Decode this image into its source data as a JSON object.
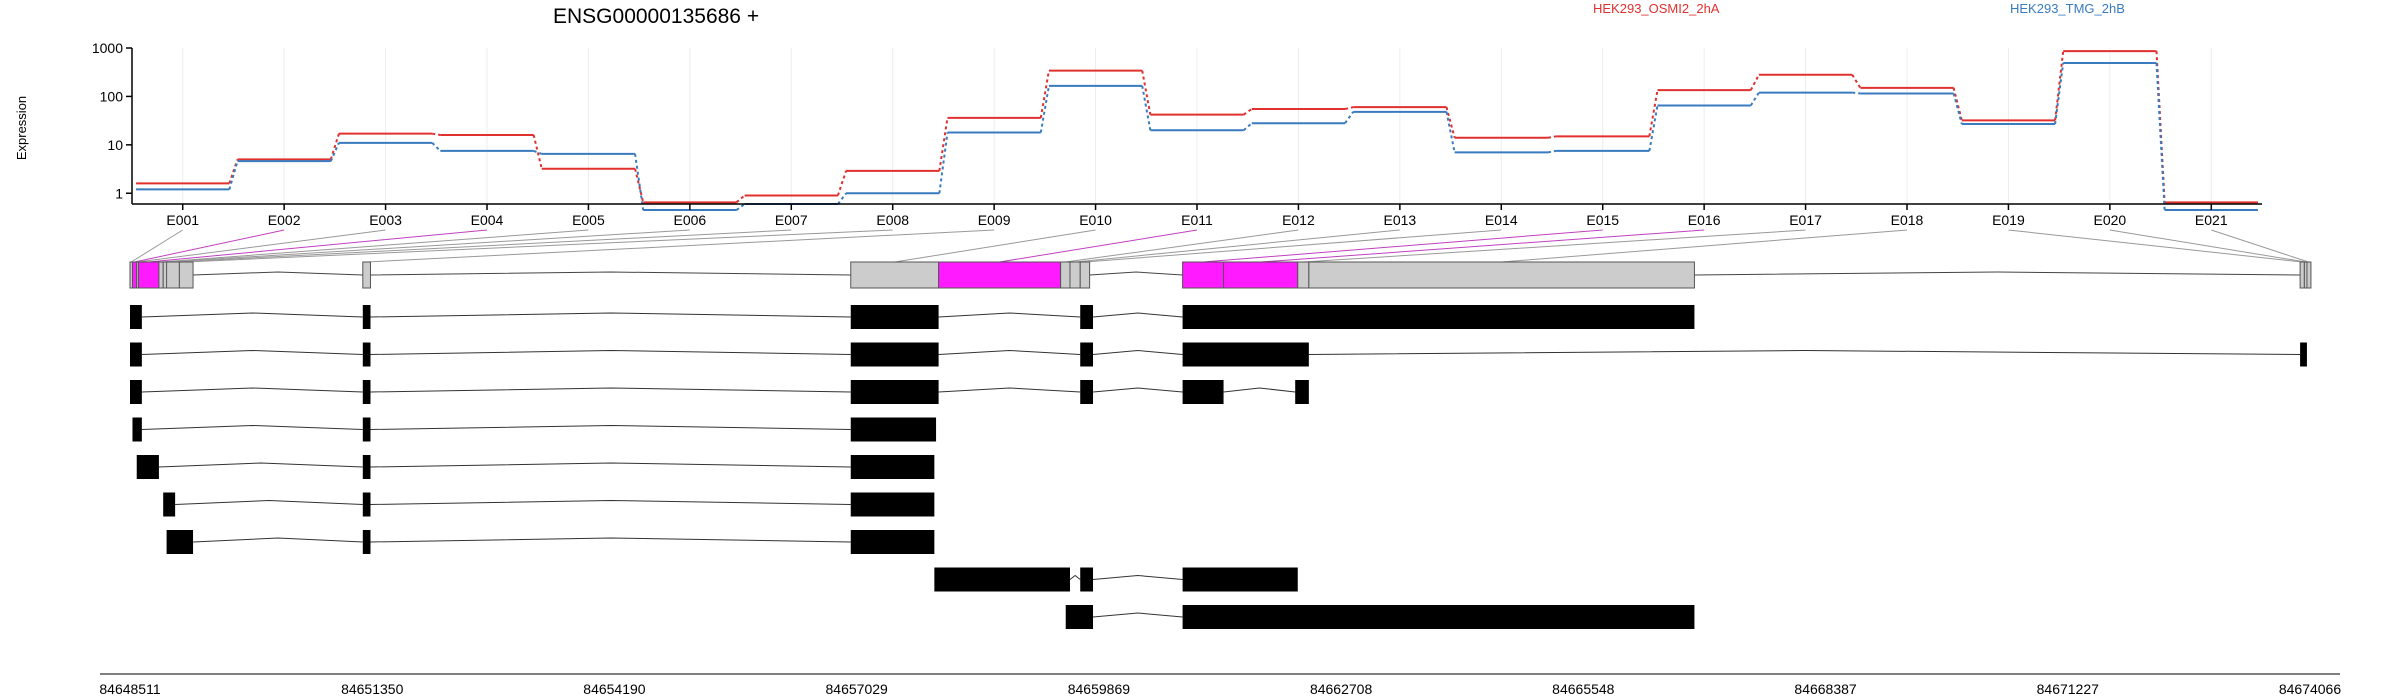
{
  "title": "ENSG00000135686 +",
  "ylabel": "Expression",
  "colors": {
    "series_a": "#e0312f",
    "series_b": "#3a7bbf",
    "exon_highlight": "#ff1aff",
    "exon_grey": "#cccccc",
    "grid": "#ececf4"
  },
  "chart_data": {
    "type": "line",
    "title": "ENSG00000135686 +",
    "ylabel": "Expression",
    "yscale": "log",
    "ylim": [
      0.6,
      1000
    ],
    "yticks": [
      "1",
      "10",
      "100",
      "1000"
    ],
    "legend_position": "top",
    "categories": [
      "E001",
      "E002",
      "E003",
      "E004",
      "E005",
      "E006",
      "E007",
      "E008",
      "E009",
      "E010",
      "E011",
      "E012",
      "E013",
      "E014",
      "E015",
      "E016",
      "E017",
      "E018",
      "E019",
      "E020",
      "E021"
    ],
    "series": [
      {
        "name": "HEK293_OSMI2_2hA",
        "color": "#e0312f",
        "values": [
          1.6,
          5.0,
          17,
          16,
          3.2,
          0.65,
          0.9,
          2.9,
          36,
          340,
          42,
          55,
          60,
          14,
          15,
          135,
          280,
          150,
          32,
          860,
          0.65
        ]
      },
      {
        "name": "HEK293_TMG_2hB",
        "color": "#3a7bbf",
        "values": [
          1.2,
          4.6,
          11,
          7.5,
          6.5,
          0.45,
          0.6,
          1.0,
          18,
          165,
          20,
          28,
          48,
          7.0,
          7.5,
          65,
          120,
          115,
          27,
          490,
          0.45
        ]
      }
    ],
    "genomic_axis_labels": [
      "84648511",
      "84651350",
      "84654190",
      "84657029",
      "84659869",
      "84662708",
      "84665548",
      "84668387",
      "84671227",
      "84674066"
    ]
  },
  "gene_model": {
    "coord_range": [
      84648511,
      84674066
    ],
    "exon_bins": [
      [
        84648511,
        84648540
      ],
      [
        84648540,
        84648590
      ],
      [
        84648590,
        84648610
      ],
      [
        84648610,
        84648850
      ],
      [
        84648850,
        84648900
      ],
      [
        84648900,
        84648940
      ],
      [
        84648940,
        84649090
      ],
      [
        84649090,
        84649250
      ],
      [
        84651240,
        84651330
      ],
      [
        84656960,
        84657990
      ],
      [
        84657990,
        84659420
      ],
      [
        84659420,
        84659530
      ],
      [
        84659530,
        84659650
      ],
      [
        84659650,
        84659760
      ],
      [
        84660850,
        84661330
      ],
      [
        84661330,
        84662200
      ],
      [
        84662200,
        84662330
      ],
      [
        84662330,
        84666850
      ],
      [
        84673950,
        84674000
      ],
      [
        84674000,
        84674030
      ],
      [
        84674030,
        84674066
      ]
    ],
    "highlight_bins": [
      1,
      3,
      10,
      14,
      15
    ]
  },
  "transcripts": [
    [
      [
        84648511,
        84648650
      ],
      [
        84651240,
        84651330
      ],
      [
        84656960,
        84657990
      ],
      [
        84659650,
        84659800
      ],
      [
        84660850,
        84666850
      ]
    ],
    [
      [
        84648511,
        84648650
      ],
      [
        84651240,
        84651330
      ],
      [
        84656960,
        84657990
      ],
      [
        84659650,
        84659800
      ],
      [
        84660850,
        84662330
      ],
      [
        84673950,
        84674030
      ]
    ],
    [
      [
        84648511,
        84648650
      ],
      [
        84651240,
        84651330
      ],
      [
        84656960,
        84657990
      ],
      [
        84659650,
        84659800
      ],
      [
        84660850,
        84661330
      ],
      [
        84662170,
        84662330
      ]
    ],
    [
      [
        84648540,
        84648650
      ],
      [
        84651240,
        84651330
      ],
      [
        84656960,
        84657960
      ]
    ],
    [
      [
        84648590,
        84648850
      ],
      [
        84651240,
        84651330
      ],
      [
        84656960,
        84657940
      ]
    ],
    [
      [
        84648900,
        84649040
      ],
      [
        84651240,
        84651330
      ],
      [
        84656960,
        84657940
      ]
    ],
    [
      [
        84648940,
        84649250
      ],
      [
        84651240,
        84651330
      ],
      [
        84656960,
        84657940
      ]
    ],
    [
      [
        84657940,
        84659530
      ],
      [
        84659650,
        84659800
      ],
      [
        84660850,
        84662200
      ]
    ],
    [
      [
        84659480,
        84659800
      ],
      [
        84660850,
        84666850
      ]
    ]
  ]
}
